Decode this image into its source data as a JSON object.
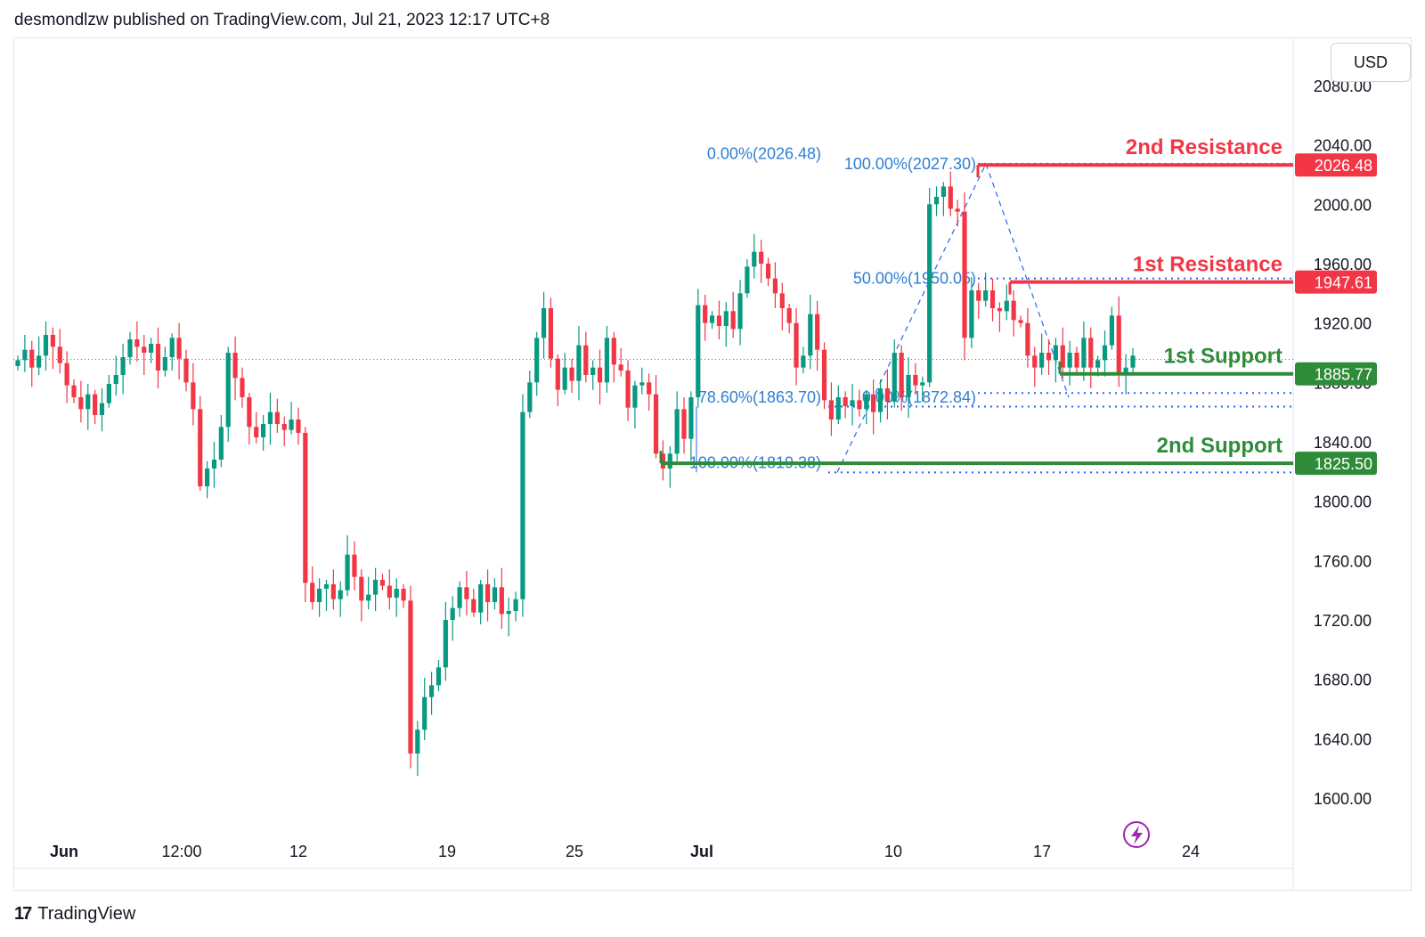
{
  "header": {
    "text": "desmondlzw published on TradingView.com, Jul 21, 2023 12:17 UTC+8"
  },
  "currency": "USD",
  "footer": {
    "logo": "17",
    "brand": "TradingView"
  },
  "icons": {
    "replay": "lightning-icon",
    "logo": "tradingview-logo-icon"
  },
  "colors": {
    "up": "#089981",
    "down": "#f23645",
    "resistance": "#f23645",
    "support": "#2e8b38",
    "fib": "#2962ff"
  },
  "chart_data": {
    "type": "candlestick",
    "y_ticks": [
      "2080.00",
      "2040.00",
      "2000.00",
      "1960.00",
      "1920.00",
      "1880.00",
      "1840.00",
      "1800.00",
      "1760.00",
      "1720.00",
      "1680.00",
      "1640.00",
      "1600.00"
    ],
    "x_ticks": [
      "Jun",
      "12:00",
      "12",
      "19",
      "25",
      "Jul",
      "10",
      "17",
      "24"
    ],
    "ylim": [
      1575,
      2090
    ],
    "current_price": 1895.5,
    "levels": [
      {
        "label": "2nd Resistance",
        "price": 2026.48,
        "price_text": "2026.48",
        "kind": "resistance"
      },
      {
        "label": "1st Resistance",
        "price": 1947.61,
        "price_text": "1947.61",
        "kind": "resistance"
      },
      {
        "label": "1st Support",
        "price": 1885.77,
        "price_text": "1885.77",
        "kind": "support"
      },
      {
        "label": "2nd Support",
        "price": 1825.5,
        "price_text": "1825.50",
        "kind": "support"
      }
    ],
    "fib_labels": [
      {
        "text": "0.00%(2026.48)",
        "price": 2034
      },
      {
        "text": "100.00%(2027.30)",
        "price": 2027.3
      },
      {
        "text": "50.00%(1950.05)",
        "price": 1950
      },
      {
        "text": "78.60%(1863.70)",
        "price": 1870
      },
      {
        "text": "0.00%(1872.84)",
        "price": 1870
      },
      {
        "text": "100.00%(1819.38)",
        "price": 1826
      }
    ],
    "closes": [
      1895,
      1902,
      1890,
      1898,
      1912,
      1904,
      1893,
      1878,
      1870,
      1862,
      1872,
      1858,
      1866,
      1879,
      1885,
      1897,
      1909,
      1904,
      1900,
      1906,
      1888,
      1897,
      1910,
      1896,
      1880,
      1862,
      1810,
      1822,
      1828,
      1850,
      1900,
      1883,
      1870,
      1850,
      1843,
      1852,
      1860,
      1852,
      1848,
      1855,
      1846,
      1745,
      1732,
      1741,
      1744,
      1734,
      1740,
      1764,
      1749,
      1733,
      1737,
      1747,
      1743,
      1735,
      1741,
      1733,
      1630,
      1646,
      1668,
      1676,
      1688,
      1720,
      1728,
      1742,
      1734,
      1725,
      1744,
      1732,
      1742,
      1724,
      1726,
      1734,
      1860,
      1880,
      1910,
      1930,
      1896,
      1875,
      1890,
      1881,
      1905,
      1885,
      1890,
      1880,
      1910,
      1892,
      1888,
      1863,
      1878,
      1880,
      1872,
      1832,
      1822,
      1832,
      1862,
      1842,
      1870,
      1932,
      1920,
      1925,
      1918,
      1928,
      1916,
      1940,
      1958,
      1968,
      1960,
      1950,
      1940,
      1930,
      1920,
      1890,
      1898,
      1926,
      1902,
      1868,
      1855,
      1870,
      1864,
      1868,
      1862,
      1872,
      1860,
      1876,
      1867,
      1900,
      1870,
      1885,
      1878,
      1880,
      2000,
      2005,
      2012,
      1997,
      1995,
      1910,
      1942,
      1935,
      1942,
      1930,
      1928,
      1935,
      1922,
      1920,
      1898,
      1890,
      1900,
      1895,
      1905,
      1890,
      1900,
      1890,
      1910,
      1890,
      1895,
      1905,
      1925,
      1885,
      1890,
      1898
    ]
  }
}
